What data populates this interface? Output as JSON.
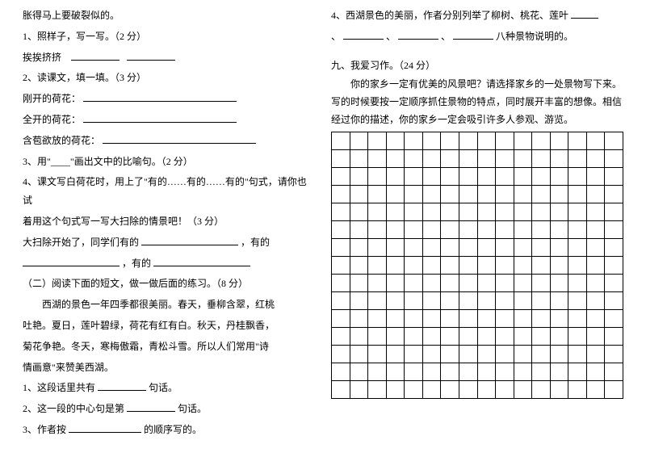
{
  "left": {
    "l0": "胀得马上要破裂似的。",
    "l1": "1、照样子，写一写。（2 分）",
    "l2a": "挨挨挤挤",
    "l3": "2、读课文，填一填。（3 分）",
    "l4a": "刚开的荷花：",
    "l5a": "全开的荷花：",
    "l6a": "含苞欲放的荷花：",
    "l7": "3、用\"____\"画出文中的比喻句。（2 分）",
    "l8": "4、课文写白荷花时，用上了\"有的……有的……有的\"句式，请你也试",
    "l9": "着用这个句式写一写大扫除的情景吧！（3 分）",
    "l10a": "大扫除开始了，同学们有的",
    "l10b": "，有的",
    "l11b": "，有的",
    "l12": "（二）阅读下面的短文，做一做后面的练习。（8 分）",
    "p1": "西湖的景色一年四季都很美丽。春天，垂柳含翠，红桃",
    "p2": "吐艳。夏日，莲叶碧绿，荷花有红有白。秋天，丹桂飘香，",
    "p3": "菊花争艳。冬天，寒梅傲霜，青松斗雪。所以人们常用\"诗",
    "p4": "情画意\"来赞美西湖。",
    "q1a": "1、这段话里共有",
    "q1b": "句话。",
    "q2a": "2、这一段的中心句是第",
    "q2b": "句话。",
    "q3a": "3、作者按",
    "q3b": "的顺序写的。"
  },
  "right": {
    "l1a": "4、西湖景色的美丽，作者分别列举了柳树、桃花、莲叶",
    "l2a": "、",
    "l2b": "、",
    "l2c": "、",
    "l2d": "八种景物说明的。",
    "h1": "九、我爱习作。（24 分）",
    "b1": "你的家乡一定有优美的风景吧？请选择家乡的一处景物写下来。",
    "b2": "写的时候要按一定顺序抓住景物的特点，同时展开丰富的想像。相信",
    "b3": "经过你的描述，你的家乡一定会吸引许多人参观、游览。",
    "grid": {
      "rows": 15,
      "cols": 16
    }
  },
  "style": {
    "background": "#ffffff",
    "text_color": "#000000",
    "font_family": "SimSun",
    "font_size_pt": 9
  }
}
